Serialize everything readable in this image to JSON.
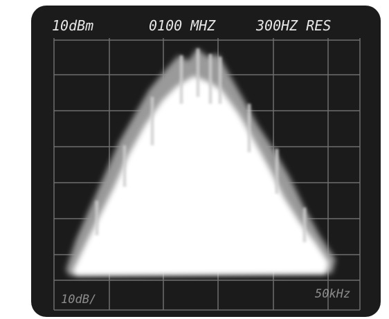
{
  "screen": {
    "header": {
      "reference_level": "10dBm",
      "center_frequency": "0100 MHZ",
      "resolution": "300HZ RES"
    },
    "footer": {
      "vertical_scale": "10dB/",
      "horizontal_scale": "50kHz"
    }
  }
}
